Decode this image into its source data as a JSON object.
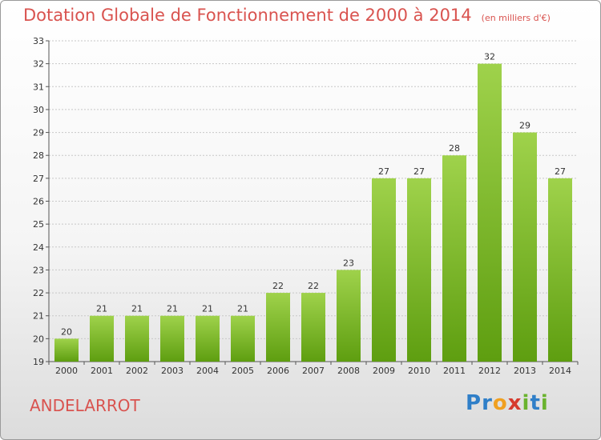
{
  "chart_data": {
    "type": "bar",
    "title": "Dotation Globale de Fonctionnement de 2000 à 2014",
    "subtitle": "(en milliers d'€)",
    "categories": [
      "2000",
      "2001",
      "2002",
      "2003",
      "2004",
      "2005",
      "2006",
      "2007",
      "2008",
      "2009",
      "2010",
      "2011",
      "2012",
      "2013",
      "2014"
    ],
    "values": [
      20,
      21,
      21,
      21,
      21,
      21,
      22,
      22,
      23,
      27,
      27,
      28,
      32,
      29,
      27
    ],
    "ylim": [
      19,
      33
    ],
    "yticks": [
      19,
      20,
      21,
      22,
      23,
      24,
      25,
      26,
      27,
      28,
      29,
      30,
      31,
      32,
      33
    ],
    "grid": true,
    "bar_color_top": "#9fd24b",
    "bar_color_bottom": "#5e9e10"
  },
  "footer": {
    "commune": "ANDELARROT",
    "brand_letters": [
      {
        "ch": "P",
        "color": "#2f7fc8"
      },
      {
        "ch": "r",
        "color": "#2f7fc8"
      },
      {
        "ch": "o",
        "color": "#f0a020"
      },
      {
        "ch": "x",
        "color": "#d63a2e"
      },
      {
        "ch": "i",
        "color": "#6ab32e"
      },
      {
        "ch": "t",
        "color": "#2f7fc8"
      },
      {
        "ch": "i",
        "color": "#6ab32e"
      }
    ]
  }
}
